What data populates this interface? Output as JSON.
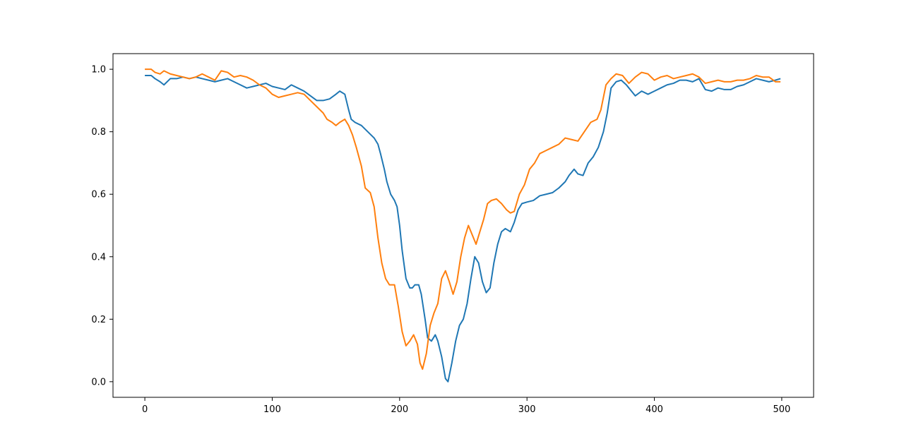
{
  "chart_data": {
    "type": "line",
    "title": "",
    "xlabel": "",
    "ylabel": "",
    "xlim": [
      -25,
      525
    ],
    "ylim": [
      -0.05,
      1.05
    ],
    "grid": false,
    "legend": "none",
    "x_ticks": [
      {
        "value": 0,
        "label": "0"
      },
      {
        "value": 100,
        "label": "100"
      },
      {
        "value": 200,
        "label": "200"
      },
      {
        "value": 300,
        "label": "300"
      },
      {
        "value": 400,
        "label": "400"
      },
      {
        "value": 500,
        "label": "500"
      }
    ],
    "y_ticks": [
      {
        "value": 0.0,
        "label": "0.0"
      },
      {
        "value": 0.2,
        "label": "0.2"
      },
      {
        "value": 0.4,
        "label": "0.4"
      },
      {
        "value": 0.6,
        "label": "0.6"
      },
      {
        "value": 0.8,
        "label": "0.8"
      },
      {
        "value": 1.0,
        "label": "1.0"
      }
    ],
    "series": [
      {
        "color": "#1f77b4",
        "points": [
          [
            0,
            0.98
          ],
          [
            5,
            0.98
          ],
          [
            8,
            0.97
          ],
          [
            12,
            0.96
          ],
          [
            15,
            0.95
          ],
          [
            20,
            0.97
          ],
          [
            25,
            0.97
          ],
          [
            30,
            0.975
          ],
          [
            35,
            0.97
          ],
          [
            40,
            0.975
          ],
          [
            45,
            0.97
          ],
          [
            50,
            0.965
          ],
          [
            55,
            0.96
          ],
          [
            60,
            0.965
          ],
          [
            65,
            0.97
          ],
          [
            70,
            0.96
          ],
          [
            75,
            0.95
          ],
          [
            80,
            0.94
          ],
          [
            85,
            0.945
          ],
          [
            90,
            0.95
          ],
          [
            95,
            0.955
          ],
          [
            100,
            0.945
          ],
          [
            105,
            0.94
          ],
          [
            110,
            0.935
          ],
          [
            115,
            0.95
          ],
          [
            120,
            0.94
          ],
          [
            125,
            0.93
          ],
          [
            130,
            0.915
          ],
          [
            135,
            0.9
          ],
          [
            140,
            0.9
          ],
          [
            145,
            0.905
          ],
          [
            150,
            0.92
          ],
          [
            153,
            0.93
          ],
          [
            157,
            0.92
          ],
          [
            160,
            0.87
          ],
          [
            162,
            0.84
          ],
          [
            165,
            0.83
          ],
          [
            170,
            0.82
          ],
          [
            175,
            0.8
          ],
          [
            180,
            0.78
          ],
          [
            183,
            0.76
          ],
          [
            185,
            0.73
          ],
          [
            188,
            0.68
          ],
          [
            190,
            0.64
          ],
          [
            193,
            0.6
          ],
          [
            196,
            0.58
          ],
          [
            198,
            0.56
          ],
          [
            200,
            0.5
          ],
          [
            202,
            0.42
          ],
          [
            205,
            0.33
          ],
          [
            208,
            0.3
          ],
          [
            210,
            0.3
          ],
          [
            212,
            0.31
          ],
          [
            215,
            0.31
          ],
          [
            217,
            0.28
          ],
          [
            220,
            0.2
          ],
          [
            222,
            0.14
          ],
          [
            225,
            0.13
          ],
          [
            228,
            0.15
          ],
          [
            230,
            0.13
          ],
          [
            233,
            0.08
          ],
          [
            236,
            0.01
          ],
          [
            238,
            0.0
          ],
          [
            241,
            0.06
          ],
          [
            244,
            0.13
          ],
          [
            247,
            0.18
          ],
          [
            250,
            0.2
          ],
          [
            253,
            0.25
          ],
          [
            256,
            0.33
          ],
          [
            259,
            0.4
          ],
          [
            262,
            0.38
          ],
          [
            265,
            0.32
          ],
          [
            268,
            0.285
          ],
          [
            271,
            0.3
          ],
          [
            274,
            0.38
          ],
          [
            277,
            0.44
          ],
          [
            280,
            0.48
          ],
          [
            283,
            0.49
          ],
          [
            287,
            0.48
          ],
          [
            290,
            0.51
          ],
          [
            293,
            0.55
          ],
          [
            296,
            0.57
          ],
          [
            300,
            0.575
          ],
          [
            305,
            0.58
          ],
          [
            310,
            0.595
          ],
          [
            315,
            0.6
          ],
          [
            320,
            0.605
          ],
          [
            325,
            0.62
          ],
          [
            330,
            0.64
          ],
          [
            333,
            0.66
          ],
          [
            337,
            0.68
          ],
          [
            340,
            0.665
          ],
          [
            344,
            0.66
          ],
          [
            348,
            0.7
          ],
          [
            352,
            0.72
          ],
          [
            356,
            0.75
          ],
          [
            360,
            0.8
          ],
          [
            363,
            0.86
          ],
          [
            366,
            0.94
          ],
          [
            370,
            0.96
          ],
          [
            374,
            0.965
          ],
          [
            378,
            0.95
          ],
          [
            382,
            0.93
          ],
          [
            385,
            0.915
          ],
          [
            390,
            0.93
          ],
          [
            395,
            0.92
          ],
          [
            400,
            0.93
          ],
          [
            405,
            0.94
          ],
          [
            410,
            0.95
          ],
          [
            415,
            0.955
          ],
          [
            420,
            0.965
          ],
          [
            425,
            0.965
          ],
          [
            430,
            0.96
          ],
          [
            435,
            0.97
          ],
          [
            440,
            0.935
          ],
          [
            445,
            0.93
          ],
          [
            450,
            0.94
          ],
          [
            455,
            0.935
          ],
          [
            460,
            0.935
          ],
          [
            465,
            0.945
          ],
          [
            470,
            0.95
          ],
          [
            475,
            0.96
          ],
          [
            480,
            0.97
          ],
          [
            485,
            0.965
          ],
          [
            490,
            0.96
          ],
          [
            495,
            0.965
          ],
          [
            499,
            0.97
          ]
        ]
      },
      {
        "color": "#ff7f0e",
        "points": [
          [
            0,
            1.0
          ],
          [
            5,
            1.0
          ],
          [
            8,
            0.99
          ],
          [
            12,
            0.985
          ],
          [
            15,
            0.995
          ],
          [
            20,
            0.985
          ],
          [
            25,
            0.98
          ],
          [
            30,
            0.975
          ],
          [
            35,
            0.97
          ],
          [
            40,
            0.975
          ],
          [
            45,
            0.985
          ],
          [
            50,
            0.975
          ],
          [
            55,
            0.965
          ],
          [
            60,
            0.995
          ],
          [
            65,
            0.99
          ],
          [
            70,
            0.975
          ],
          [
            75,
            0.98
          ],
          [
            80,
            0.975
          ],
          [
            85,
            0.965
          ],
          [
            90,
            0.95
          ],
          [
            95,
            0.94
          ],
          [
            100,
            0.92
          ],
          [
            105,
            0.91
          ],
          [
            110,
            0.915
          ],
          [
            115,
            0.92
          ],
          [
            120,
            0.925
          ],
          [
            125,
            0.92
          ],
          [
            130,
            0.9
          ],
          [
            135,
            0.88
          ],
          [
            140,
            0.86
          ],
          [
            143,
            0.84
          ],
          [
            147,
            0.83
          ],
          [
            150,
            0.82
          ],
          [
            153,
            0.83
          ],
          [
            157,
            0.84
          ],
          [
            160,
            0.82
          ],
          [
            163,
            0.79
          ],
          [
            166,
            0.75
          ],
          [
            170,
            0.69
          ],
          [
            173,
            0.62
          ],
          [
            177,
            0.605
          ],
          [
            180,
            0.56
          ],
          [
            183,
            0.46
          ],
          [
            186,
            0.38
          ],
          [
            189,
            0.33
          ],
          [
            192,
            0.31
          ],
          [
            196,
            0.31
          ],
          [
            199,
            0.24
          ],
          [
            202,
            0.16
          ],
          [
            205,
            0.115
          ],
          [
            208,
            0.13
          ],
          [
            211,
            0.15
          ],
          [
            214,
            0.12
          ],
          [
            216,
            0.06
          ],
          [
            218,
            0.04
          ],
          [
            221,
            0.09
          ],
          [
            224,
            0.18
          ],
          [
            227,
            0.22
          ],
          [
            230,
            0.25
          ],
          [
            233,
            0.33
          ],
          [
            236,
            0.355
          ],
          [
            239,
            0.32
          ],
          [
            242,
            0.28
          ],
          [
            245,
            0.32
          ],
          [
            248,
            0.4
          ],
          [
            251,
            0.46
          ],
          [
            254,
            0.5
          ],
          [
            257,
            0.47
          ],
          [
            260,
            0.44
          ],
          [
            263,
            0.48
          ],
          [
            266,
            0.52
          ],
          [
            269,
            0.57
          ],
          [
            272,
            0.58
          ],
          [
            276,
            0.585
          ],
          [
            280,
            0.57
          ],
          [
            284,
            0.55
          ],
          [
            287,
            0.54
          ],
          [
            290,
            0.545
          ],
          [
            294,
            0.6
          ],
          [
            298,
            0.63
          ],
          [
            302,
            0.68
          ],
          [
            306,
            0.7
          ],
          [
            310,
            0.73
          ],
          [
            315,
            0.74
          ],
          [
            320,
            0.75
          ],
          [
            325,
            0.76
          ],
          [
            330,
            0.78
          ],
          [
            335,
            0.775
          ],
          [
            340,
            0.77
          ],
          [
            345,
            0.8
          ],
          [
            350,
            0.83
          ],
          [
            355,
            0.84
          ],
          [
            358,
            0.87
          ],
          [
            362,
            0.95
          ],
          [
            366,
            0.97
          ],
          [
            370,
            0.985
          ],
          [
            375,
            0.98
          ],
          [
            380,
            0.955
          ],
          [
            385,
            0.975
          ],
          [
            390,
            0.99
          ],
          [
            395,
            0.985
          ],
          [
            400,
            0.965
          ],
          [
            405,
            0.975
          ],
          [
            410,
            0.98
          ],
          [
            415,
            0.97
          ],
          [
            420,
            0.975
          ],
          [
            425,
            0.98
          ],
          [
            430,
            0.985
          ],
          [
            435,
            0.975
          ],
          [
            440,
            0.955
          ],
          [
            445,
            0.96
          ],
          [
            450,
            0.965
          ],
          [
            455,
            0.96
          ],
          [
            460,
            0.96
          ],
          [
            465,
            0.965
          ],
          [
            470,
            0.965
          ],
          [
            475,
            0.97
          ],
          [
            480,
            0.98
          ],
          [
            485,
            0.975
          ],
          [
            490,
            0.975
          ],
          [
            495,
            0.96
          ],
          [
            499,
            0.96
          ]
        ]
      }
    ]
  }
}
